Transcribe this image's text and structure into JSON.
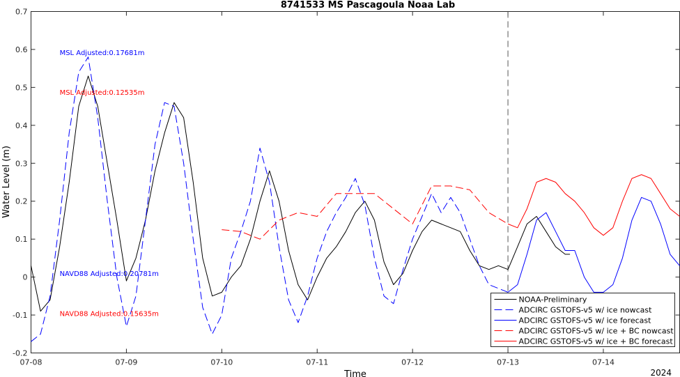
{
  "chart_data": {
    "type": "line",
    "title": "8741533 MS Pascagoula Noaa Lab",
    "xlabel": "Time",
    "ylabel": "Water Level (m)",
    "xlim": [
      0,
      6.8
    ],
    "ylim": [
      -0.2,
      0.7
    ],
    "yticks": [
      -0.2,
      -0.1,
      0,
      0.1,
      0.2,
      0.3,
      0.4,
      0.5,
      0.6,
      0.7
    ],
    "ytick_labels": [
      "-0.2",
      "-0.1",
      "0",
      "0.1",
      "0.2",
      "0.3",
      "0.4",
      "0.5",
      "0.6",
      "0.7"
    ],
    "xticks": [
      0,
      1,
      2,
      3,
      4,
      5,
      6
    ],
    "xtick_labels": [
      "07-08",
      "07-09",
      "07-10",
      "07-11",
      "07-12",
      "07-13",
      "07-14"
    ],
    "year_label": "2024",
    "x_units": "days since 07-08",
    "nowcast_divider_x": 5.0,
    "grid": false,
    "legend_position": "bottom-right",
    "annotations": [
      {
        "text": "MSL Adjusted:0.17681m",
        "x": 0.3,
        "y": 0.593,
        "color": "#0000ff"
      },
      {
        "text": "MSL Adjusted:0.12535m",
        "x": 0.3,
        "y": 0.488,
        "color": "#ff0000"
      },
      {
        "text": "NAVD88 Adjusted:0.20781m",
        "x": 0.3,
        "y": 0.01,
        "color": "#0000ff"
      },
      {
        "text": "NAVD88 Adjusted:0.15635m",
        "x": 0.3,
        "y": -0.095,
        "color": "#ff0000"
      }
    ],
    "series": [
      {
        "name": "NOAA-Preliminary",
        "color": "#000000",
        "dash": "solid",
        "x": [
          0.0,
          0.1,
          0.2,
          0.3,
          0.4,
          0.5,
          0.6,
          0.7,
          0.8,
          0.9,
          1.0,
          1.1,
          1.2,
          1.3,
          1.4,
          1.5,
          1.6,
          1.7,
          1.8,
          1.9,
          2.0,
          2.1,
          2.2,
          2.3,
          2.4,
          2.5,
          2.6,
          2.7,
          2.8,
          2.9,
          3.0,
          3.1,
          3.2,
          3.3,
          3.4,
          3.5,
          3.6,
          3.7,
          3.8,
          3.9,
          4.0,
          4.1,
          4.2,
          4.3,
          4.4,
          4.5,
          4.6,
          4.7,
          4.8,
          4.9,
          5.0,
          5.1,
          5.2,
          5.3,
          5.4,
          5.5,
          5.6,
          5.65
        ],
        "y": [
          0.03,
          -0.09,
          -0.06,
          0.08,
          0.25,
          0.45,
          0.53,
          0.45,
          0.3,
          0.15,
          -0.01,
          0.05,
          0.15,
          0.28,
          0.38,
          0.46,
          0.42,
          0.25,
          0.05,
          -0.05,
          -0.04,
          0.0,
          0.03,
          0.1,
          0.2,
          0.28,
          0.2,
          0.07,
          -0.02,
          -0.06,
          0.0,
          0.05,
          0.08,
          0.12,
          0.17,
          0.2,
          0.15,
          0.04,
          -0.02,
          0.01,
          0.07,
          0.12,
          0.15,
          0.14,
          0.13,
          0.12,
          0.07,
          0.03,
          0.02,
          0.03,
          0.02,
          0.08,
          0.14,
          0.16,
          0.12,
          0.08,
          0.06,
          0.06
        ]
      },
      {
        "name": "ADCIRC GSTOFS-v5 w/ ice nowcast",
        "color": "#0000ff",
        "dash": "long",
        "x": [
          0.0,
          0.1,
          0.2,
          0.3,
          0.4,
          0.5,
          0.6,
          0.7,
          0.8,
          0.9,
          1.0,
          1.1,
          1.2,
          1.3,
          1.4,
          1.5,
          1.6,
          1.7,
          1.8,
          1.9,
          2.0,
          2.1,
          2.2,
          2.3,
          2.4,
          2.5,
          2.6,
          2.7,
          2.8,
          2.9,
          3.0,
          3.1,
          3.2,
          3.3,
          3.4,
          3.5,
          3.6,
          3.7,
          3.8,
          3.9,
          4.0,
          4.1,
          4.2,
          4.3,
          4.4,
          4.5,
          4.6,
          4.7,
          4.8,
          4.9,
          5.0
        ],
        "y": [
          -0.17,
          -0.15,
          -0.05,
          0.15,
          0.38,
          0.54,
          0.58,
          0.42,
          0.2,
          0.0,
          -0.13,
          -0.05,
          0.15,
          0.35,
          0.46,
          0.45,
          0.3,
          0.1,
          -0.08,
          -0.15,
          -0.1,
          0.05,
          0.12,
          0.2,
          0.34,
          0.25,
          0.08,
          -0.06,
          -0.12,
          -0.05,
          0.05,
          0.12,
          0.17,
          0.21,
          0.26,
          0.19,
          0.05,
          -0.05,
          -0.07,
          0.02,
          0.1,
          0.16,
          0.22,
          0.17,
          0.21,
          0.17,
          0.1,
          0.03,
          -0.02,
          -0.03,
          -0.04
        ]
      },
      {
        "name": "ADCIRC GSTOFS-v5 w/ ice forecast",
        "color": "#0000ff",
        "dash": "solid",
        "x": [
          5.0,
          5.1,
          5.2,
          5.3,
          5.4,
          5.5,
          5.6,
          5.7,
          5.8,
          5.9,
          6.0,
          6.1,
          6.2,
          6.3,
          6.4,
          6.5,
          6.6,
          6.7,
          6.8
        ],
        "y": [
          -0.04,
          -0.02,
          0.06,
          0.15,
          0.17,
          0.12,
          0.07,
          0.07,
          0.0,
          -0.04,
          -0.04,
          -0.02,
          0.05,
          0.15,
          0.21,
          0.2,
          0.14,
          0.06,
          0.03
        ]
      },
      {
        "name": "ADCIRC GSTOFS-v5 w/ ice + BC nowcast",
        "color": "#ff0000",
        "dash": "long",
        "x": [
          2.0,
          2.2,
          2.4,
          2.6,
          2.8,
          3.0,
          3.2,
          3.4,
          3.6,
          3.8,
          4.0,
          4.2,
          4.4,
          4.6,
          4.8,
          5.0
        ],
        "y": [
          0.125,
          0.12,
          0.1,
          0.15,
          0.17,
          0.16,
          0.22,
          0.22,
          0.22,
          0.18,
          0.14,
          0.24,
          0.24,
          0.23,
          0.17,
          0.14
        ]
      },
      {
        "name": "ADCIRC GSTOFS-v5 w/ ice + BC forecast",
        "color": "#ff0000",
        "dash": "solid",
        "x": [
          5.0,
          5.1,
          5.2,
          5.3,
          5.4,
          5.5,
          5.6,
          5.7,
          5.8,
          5.9,
          6.0,
          6.1,
          6.2,
          6.3,
          6.4,
          6.5,
          6.6,
          6.7,
          6.8
        ],
        "y": [
          0.14,
          0.13,
          0.18,
          0.25,
          0.26,
          0.25,
          0.22,
          0.2,
          0.17,
          0.13,
          0.11,
          0.13,
          0.2,
          0.26,
          0.27,
          0.26,
          0.22,
          0.18,
          0.16
        ]
      }
    ]
  }
}
